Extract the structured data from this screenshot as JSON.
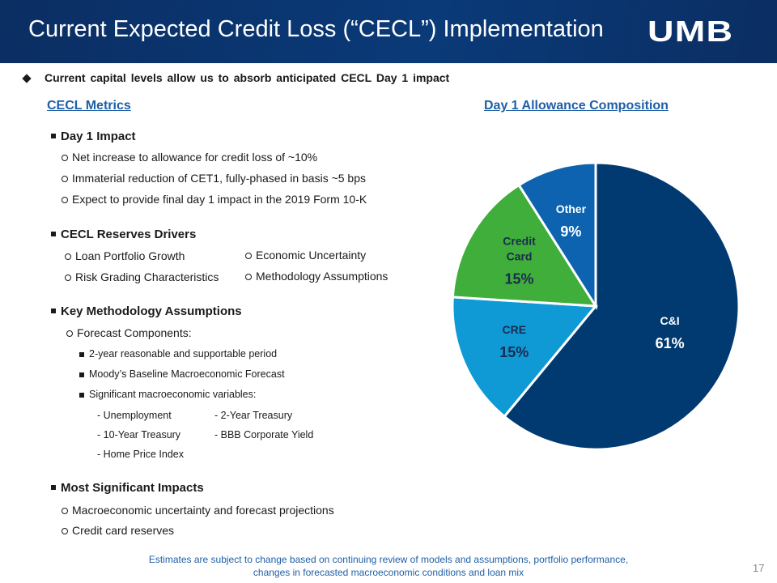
{
  "header": {
    "title": "Current Expected Credit Loss (“CECL”) Implementation",
    "logo": "UMB"
  },
  "headline": "Current capital levels allow us to absorb anticipated CECL Day 1 impact",
  "metrics": {
    "title": "CECL Metrics",
    "day1": {
      "heading": "Day 1 Impact",
      "items": [
        "Net increase to allowance for credit loss of ~10%",
        "Immaterial reduction of CET1, fully-phased in basis ~5 bps",
        "Expect to provide final day 1 impact in the 2019 Form 10-K"
      ]
    },
    "drivers": {
      "heading": "CECL Reserves Drivers",
      "left": [
        "Loan Portfolio Growth",
        "Risk Grading Characteristics"
      ],
      "right": [
        "Economic Uncertainty",
        "Methodology Assumptions"
      ]
    },
    "assumptions": {
      "heading": "Key Methodology Assumptions",
      "sub": "Forecast Components:",
      "items": [
        "2-year reasonable and supportable period",
        "Moody’s Baseline Macroeconomic Forecast",
        "Significant macroeconomic variables:"
      ],
      "variables": [
        [
          "- Unemployment",
          "- 2-Year Treasury"
        ],
        [
          "- 10-Year Treasury",
          "- BBB Corporate  Yield"
        ],
        [
          "- Home Price Index"
        ]
      ]
    },
    "impacts": {
      "heading": "Most Significant Impacts",
      "items": [
        "Macroeconomic uncertainty and forecast projections",
        "Credit card reserves"
      ]
    }
  },
  "chart_data": {
    "type": "pie",
    "title": "Day 1 Allowance Composition",
    "categories": [
      "C&I",
      "CRE",
      "Credit Card",
      "Other"
    ],
    "values": [
      61,
      15,
      15,
      9
    ],
    "value_labels": [
      "61%",
      "15%",
      "15%",
      "9%"
    ],
    "colors": [
      "#003a70",
      "#0f9ad6",
      "#3fae3a",
      "#0d63b0"
    ]
  },
  "footer": {
    "lines": [
      "Estimates are subject to change based on continuing review of models and assumptions, portfolio performance,",
      "changes in forecasted macroeconomic conditions and loan mix"
    ],
    "page": 17
  }
}
